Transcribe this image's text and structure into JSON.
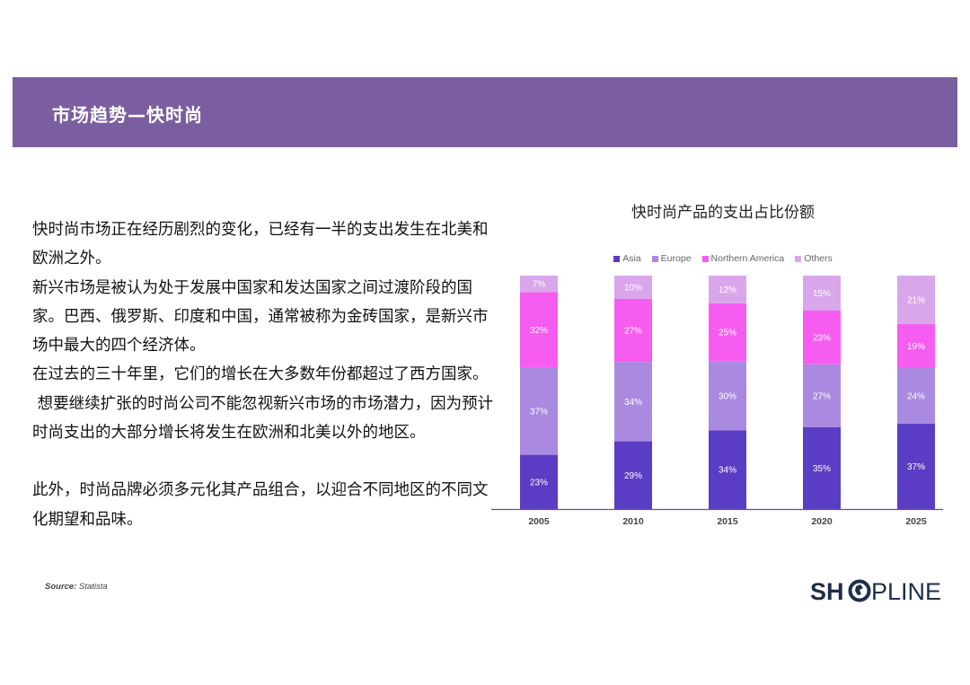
{
  "header": {
    "title": "市场趋势—快时尚"
  },
  "body": {
    "paragraphs": [
      "快时尚市场正在经历剧烈的变化，已经有一半的支出发生在北美和欧洲之外。",
      "新兴市场是被认为处于发展中国家和发达国家之间过渡阶段的国家。巴西、俄罗斯、印度和中国，通常被称为金砖国家，是新兴市场中最大的四个经济体。",
      "在过去的三十年里，它们的增长在大多数年份都超过了西方国家。",
      " 想要继续扩张的时尚公司不能忽视新兴市场的市场潜力，因为预计时尚支出的大部分增长将发生在欧洲和北美以外的地区。",
      "此外，时尚品牌必须多元化其产品组合，以迎合不同地区的不同文化期望和品味。"
    ]
  },
  "footer": {
    "source_label": "Source:",
    "source_value": "Statista",
    "logo_text_1": "SH",
    "logo_text_2": "PLINE"
  },
  "colors": {
    "header_bg": "#7a5ea0",
    "asia": "#5b3cc4",
    "europe": "#a98ae0",
    "northern_america": "#f75cf0",
    "others": "#d9a6ec",
    "logo": "#1f2d4c"
  },
  "chart_data": {
    "type": "bar",
    "stacked": true,
    "title": "快时尚产品的支出占比份额",
    "categories": [
      "2005",
      "2010",
      "2015",
      "2020",
      "2025"
    ],
    "series": [
      {
        "name": "Asia",
        "values": [
          23,
          29,
          34,
          35,
          37
        ],
        "labels": [
          "23%",
          "29%",
          "34%",
          "35%",
          "37%"
        ]
      },
      {
        "name": "Europe",
        "values": [
          37,
          34,
          30,
          27,
          24
        ],
        "labels": [
          "37%",
          "34%",
          "30%",
          "27%",
          "24%"
        ]
      },
      {
        "name": "Northern America",
        "values": [
          32,
          27,
          25,
          23,
          19
        ],
        "labels": [
          "32%",
          "27%",
          "25%",
          "23%",
          "19%"
        ]
      },
      {
        "name": "Others",
        "values": [
          7,
          10,
          12,
          15,
          21
        ],
        "labels": [
          "7%",
          "10%",
          "12%",
          "15%",
          "21%"
        ]
      }
    ],
    "ylim": [
      0,
      100
    ],
    "xlabel": "",
    "ylabel": "",
    "legend_position": "top"
  }
}
